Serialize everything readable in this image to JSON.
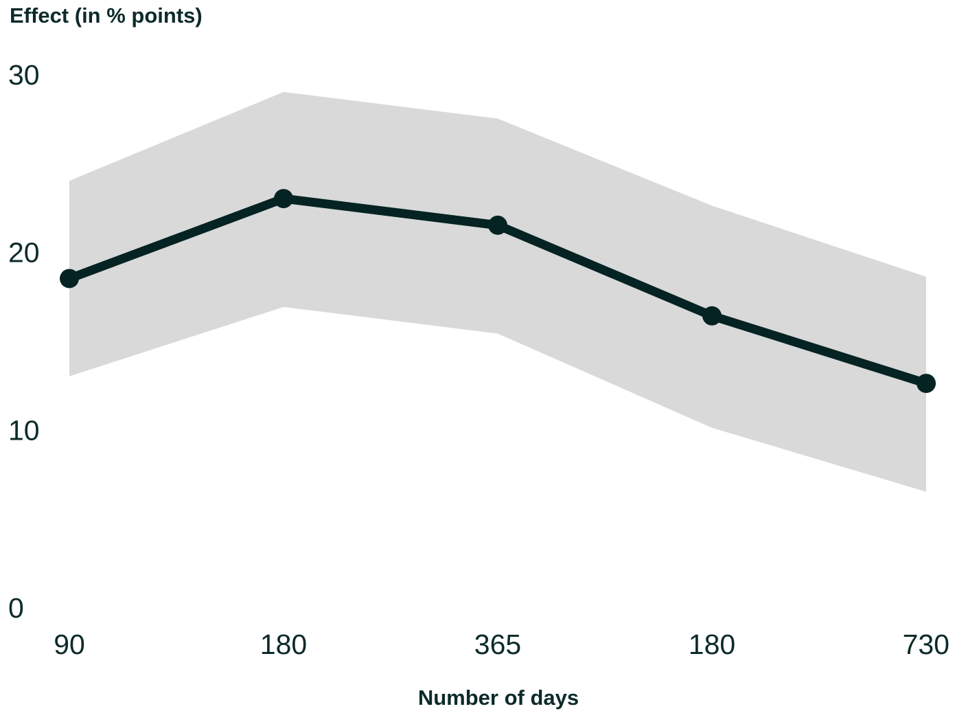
{
  "chart_data": {
    "type": "line",
    "ylabel": "Effect (in % points)",
    "xlabel": "Number of days",
    "categories": [
      "90",
      "180",
      "365",
      "180",
      "730"
    ],
    "ylim": [
      0,
      30
    ],
    "yticks": [
      "0",
      "10",
      "20",
      "30"
    ],
    "grid": false,
    "legend": "none",
    "series": [
      {
        "values": [
          18.5,
          23.0,
          21.5,
          16.4,
          12.6
        ]
      }
    ],
    "band": {
      "upper": [
        24.0,
        29.0,
        27.5,
        22.6,
        18.6
      ],
      "lower": [
        13.0,
        16.9,
        15.4,
        10.1,
        6.5
      ]
    },
    "colors": {
      "line": "#052323",
      "band": "#d9d9d9",
      "text": "#0d2a2a"
    }
  }
}
